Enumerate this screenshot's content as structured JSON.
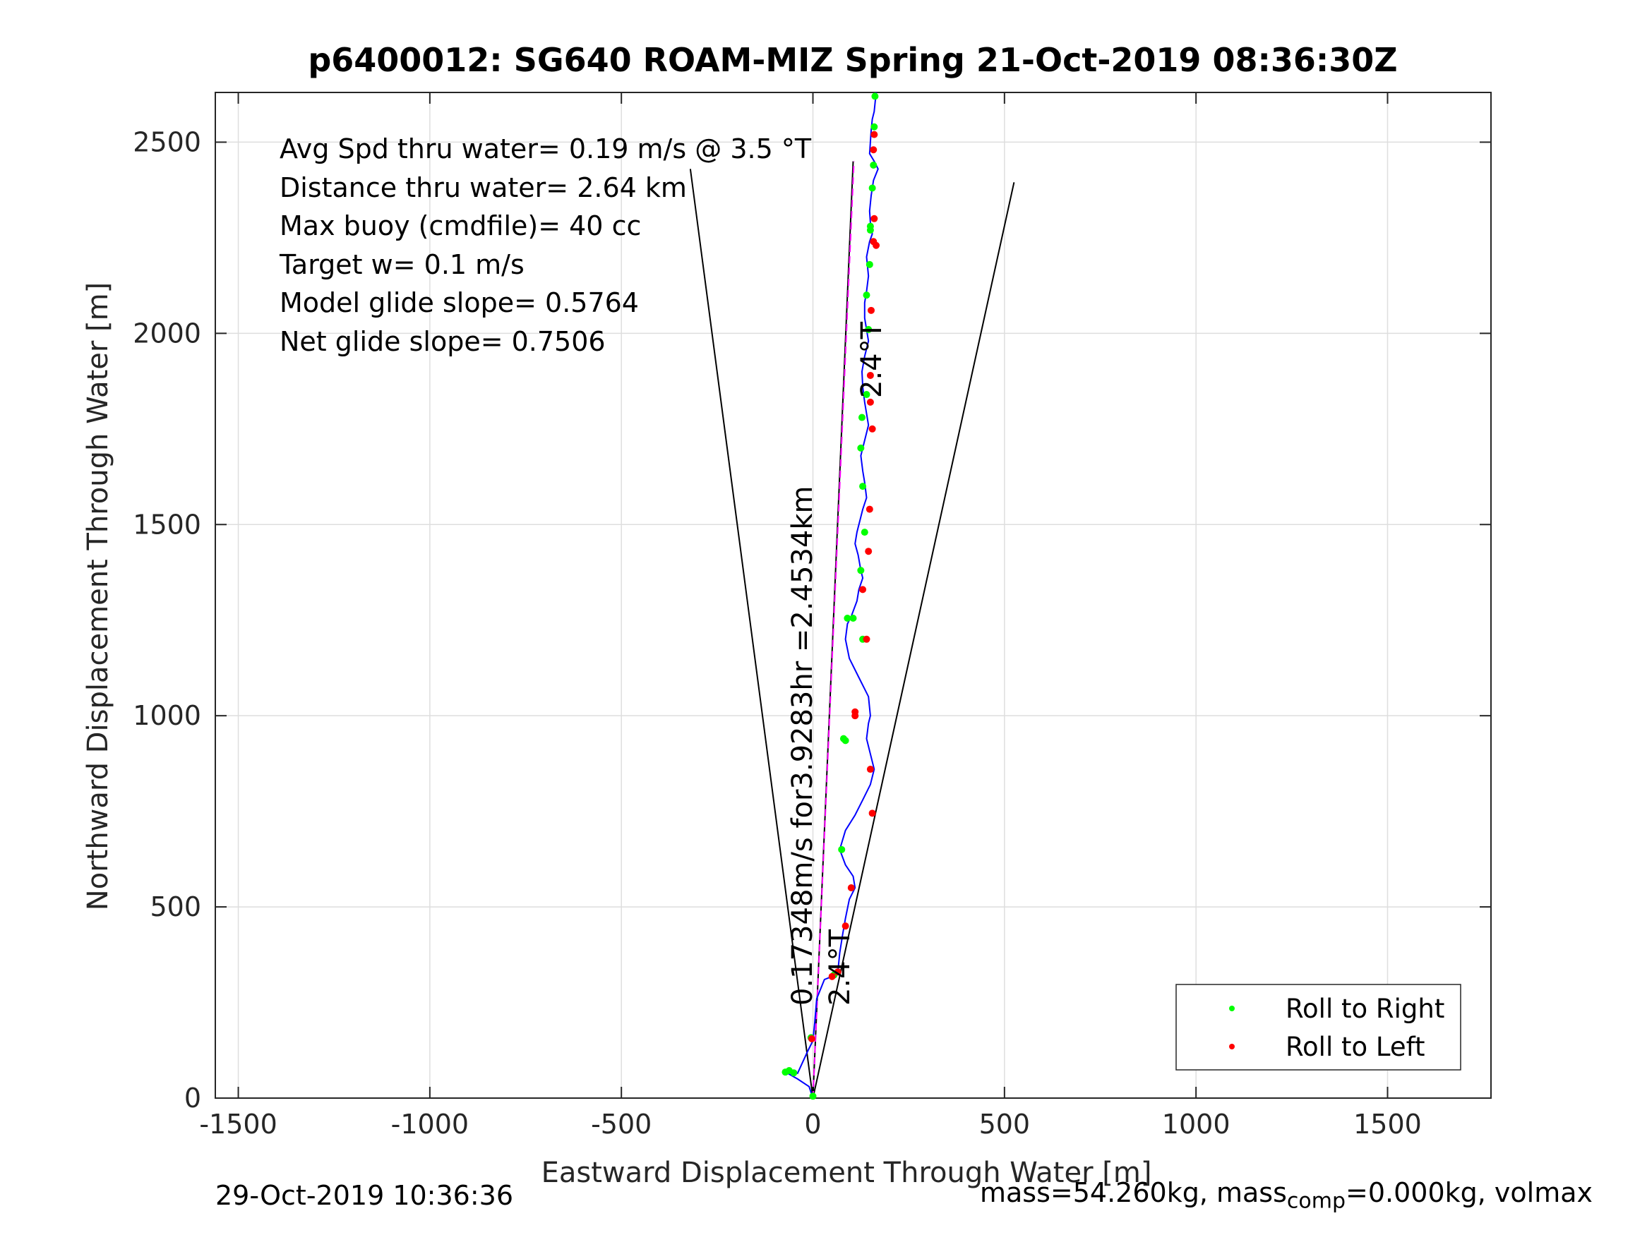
{
  "chart_data": {
    "type": "line",
    "title": "p6400012: SG640 ROAM-MIZ Spring 21-Oct-2019 08:36:30Z",
    "xlabel": "Eastward Displacement Through Water [m]",
    "ylabel": "Northward Displacement Through Water [m]",
    "xlim": [
      -1560,
      1770
    ],
    "ylim": [
      0,
      2630
    ],
    "xticks": [
      -1500,
      -1000,
      -500,
      0,
      500,
      1000,
      1500
    ],
    "xtick_labels": [
      "-1500",
      "-1000",
      "-500",
      "0",
      "500",
      "1000",
      "1500"
    ],
    "yticks": [
      0,
      500,
      1000,
      1500,
      2000,
      2500
    ],
    "ytick_labels": [
      "0",
      "500",
      "1000",
      "1500",
      "2000",
      "2500"
    ],
    "grid": true,
    "legend_position": "bottom-right",
    "legend": [
      {
        "label": "Roll to Right",
        "color": "#00ff00"
      },
      {
        "label": "Roll to Left",
        "color": "#ff0000"
      }
    ],
    "annotations": [
      "Avg Spd thru water=  0.19 m/s @   3.5  °T",
      "Distance thru water=  2.64 km",
      "Max buoy (cmdfile)= 40 cc",
      "Target w= 0.1 m/s",
      "Model glide slope= 0.5764",
      "Net glide slope= 0.7506"
    ],
    "heading_label_top": "2.4°T",
    "heading_label_bottom": "2.4°T",
    "speed_label": "0.17348m/s for3.9283hr =2.4534km",
    "guide_lines": [
      {
        "x": [
          0,
          -320
        ],
        "y": [
          0,
          2430
        ],
        "color": "#000000"
      },
      {
        "x": [
          0,
          105
        ],
        "y": [
          0,
          2450
        ],
        "color": "#000000"
      },
      {
        "x": [
          0,
          525
        ],
        "y": [
          0,
          2395
        ],
        "color": "#000000"
      },
      {
        "x": [
          0,
          107
        ],
        "y": [
          0,
          2450
        ],
        "color": "#ff00ff",
        "dashed": true
      }
    ],
    "series": [
      {
        "color": "#0000ff",
        "x": [
          0,
          -10,
          -40,
          -75,
          -65,
          -40,
          -15,
          0,
          5,
          10,
          30,
          55,
          65,
          70,
          78,
          85,
          95,
          110,
          105,
          85,
          70,
          85,
          110,
          130,
          150,
          160,
          150,
          140,
          145,
          150,
          145,
          120,
          95,
          85,
          90,
          100,
          115,
          120,
          130,
          125,
          118,
          110,
          115,
          125,
          130,
          140,
          135,
          130,
          125,
          130,
          140,
          145,
          140,
          135,
          130,
          128,
          135,
          145,
          140,
          135,
          135,
          140,
          145,
          142,
          140,
          148,
          155,
          150,
          148,
          152,
          158,
          170,
          160,
          148,
          150,
          152,
          155,
          160,
          162,
          165
        ],
        "y": [
          0,
          30,
          50,
          70,
          75,
          65,
          120,
          150,
          200,
          260,
          310,
          320,
          330,
          380,
          430,
          470,
          520,
          550,
          580,
          610,
          650,
          700,
          740,
          780,
          820,
          860,
          900,
          940,
          980,
          1000,
          1050,
          1100,
          1150,
          1200,
          1240,
          1260,
          1300,
          1330,
          1360,
          1380,
          1420,
          1450,
          1480,
          1520,
          1540,
          1570,
          1610,
          1640,
          1680,
          1700,
          1740,
          1760,
          1790,
          1820,
          1860,
          1900,
          1940,
          1980,
          2010,
          2040,
          2080,
          2110,
          2150,
          2180,
          2200,
          2240,
          2260,
          2290,
          2320,
          2360,
          2400,
          2430,
          2450,
          2470,
          2500,
          2530,
          2560,
          2580,
          2600,
          2630
        ]
      }
    ],
    "roll_right_points": {
      "x": [
        -72,
        -62,
        -50,
        -5,
        0,
        55,
        75,
        85,
        80,
        90,
        130,
        105,
        125,
        135,
        130,
        125,
        128,
        140,
        145,
        140,
        148,
        150,
        150,
        155,
        158,
        160,
        162
      ],
      "y": [
        68,
        72,
        66,
        158,
        5,
        322,
        650,
        935,
        940,
        1255,
        1200,
        1255,
        1380,
        1480,
        1600,
        1700,
        1780,
        1840,
        2010,
        2100,
        2180,
        2270,
        2280,
        2380,
        2440,
        2540,
        2620
      ]
    },
    "roll_left_points": {
      "x": [
        -3,
        50,
        65,
        85,
        100,
        110,
        150,
        155,
        110,
        130,
        140,
        145,
        148,
        150,
        152,
        158,
        165,
        150,
        155,
        160,
        158,
        160
      ],
      "y": [
        155,
        318,
        330,
        450,
        550,
        1000,
        860,
        745,
        1010,
        1330,
        1200,
        1430,
        1540,
        1820,
        2060,
        2240,
        2230,
        1890,
        1750,
        2300,
        2480,
        2520
      ]
    }
  }
}
